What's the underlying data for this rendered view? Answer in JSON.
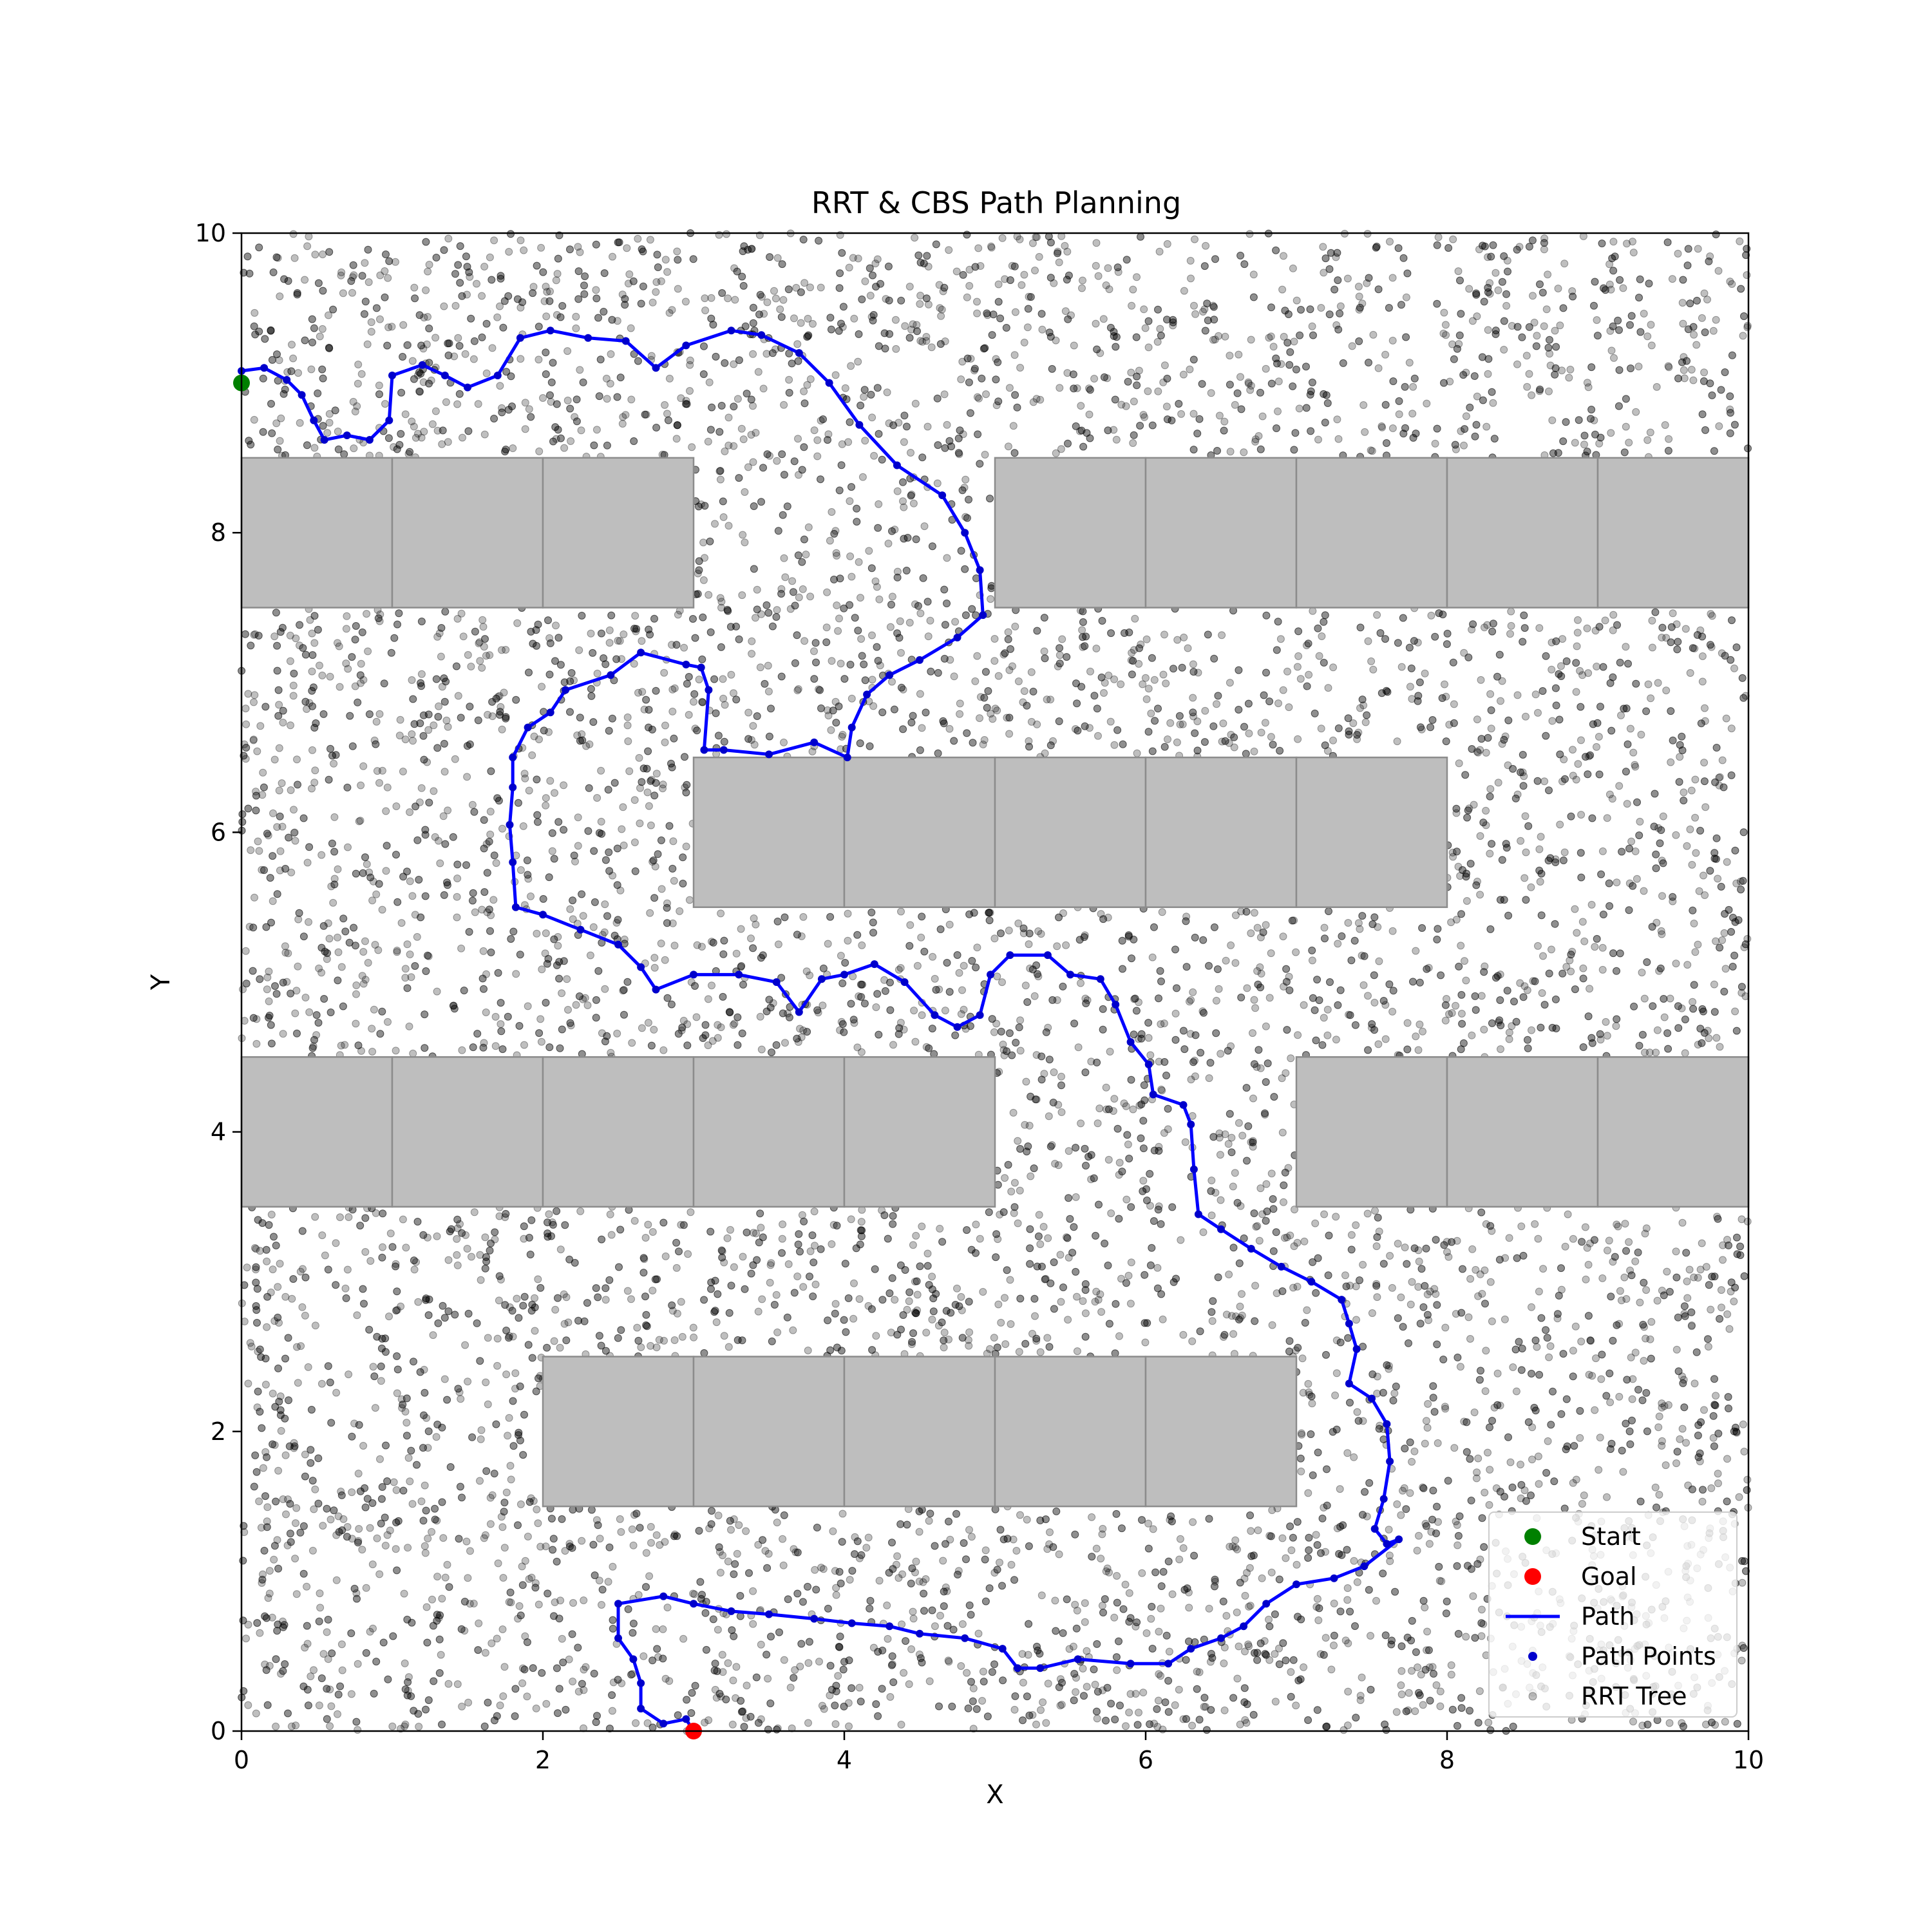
{
  "chart_data": {
    "type": "scatter",
    "title": "RRT & CBS Path Planning",
    "xlabel": "X",
    "ylabel": "Y",
    "xlim": [
      0,
      10
    ],
    "ylim": [
      0,
      10
    ],
    "xticks": [
      0,
      2,
      4,
      6,
      8,
      10
    ],
    "yticks": [
      0,
      2,
      4,
      6,
      8,
      10
    ],
    "grid": false,
    "legend_position": "bottom-right",
    "colors": {
      "start": "#008000",
      "goal": "#ff0000",
      "path": "#0000ff",
      "path_points": "#0000cc",
      "tree": "#000000",
      "obstacle_fill": "#bebebe",
      "obstacle_edge": "#8c8c8c"
    },
    "legend": [
      {
        "label": "Start",
        "kind": "marker-large",
        "color": "#008000"
      },
      {
        "label": "Goal",
        "kind": "marker-large",
        "color": "#ff0000"
      },
      {
        "label": "Path",
        "kind": "line",
        "color": "#0000ff"
      },
      {
        "label": "Path Points",
        "kind": "marker-small",
        "color": "#0000cc"
      },
      {
        "label": "RRT Tree",
        "kind": "marker-faint",
        "color": "#000000"
      }
    ],
    "start": {
      "x": 0.0,
      "y": 9.0
    },
    "goal": {
      "x": 3.0,
      "y": 0.0
    },
    "obstacles": [
      {
        "x0": 0,
        "x1": 3,
        "y0": 7.5,
        "y1": 8.5,
        "cells": 3
      },
      {
        "x0": 5,
        "x1": 10,
        "y0": 7.5,
        "y1": 8.5,
        "cells": 5
      },
      {
        "x0": 3,
        "x1": 8,
        "y0": 5.5,
        "y1": 6.5,
        "cells": 5
      },
      {
        "x0": 0,
        "x1": 5,
        "y0": 3.5,
        "y1": 4.5,
        "cells": 5
      },
      {
        "x0": 7,
        "x1": 10,
        "y0": 3.5,
        "y1": 4.5,
        "cells": 3
      },
      {
        "x0": 2,
        "x1": 7,
        "y0": 1.5,
        "y1": 2.5,
        "cells": 5
      }
    ],
    "rrt_tree": {
      "approx_sample_count": 9000,
      "style": "semi-transparent gray circles covering free space"
    },
    "path": [
      [
        0.0,
        9.08
      ],
      [
        0.15,
        9.1
      ],
      [
        0.3,
        9.02
      ],
      [
        0.4,
        8.92
      ],
      [
        0.48,
        8.75
      ],
      [
        0.55,
        8.62
      ],
      [
        0.7,
        8.65
      ],
      [
        0.85,
        8.62
      ],
      [
        0.98,
        8.75
      ],
      [
        1.0,
        9.05
      ],
      [
        1.2,
        9.12
      ],
      [
        1.35,
        9.05
      ],
      [
        1.5,
        8.97
      ],
      [
        1.7,
        9.05
      ],
      [
        1.85,
        9.3
      ],
      [
        2.05,
        9.35
      ],
      [
        2.3,
        9.3
      ],
      [
        2.55,
        9.28
      ],
      [
        2.75,
        9.1
      ],
      [
        2.95,
        9.25
      ],
      [
        3.25,
        9.35
      ],
      [
        3.45,
        9.32
      ],
      [
        3.7,
        9.2
      ],
      [
        3.9,
        9.0
      ],
      [
        4.1,
        8.72
      ],
      [
        4.35,
        8.45
      ],
      [
        4.65,
        8.25
      ],
      [
        4.8,
        8.0
      ],
      [
        4.9,
        7.75
      ],
      [
        4.92,
        7.45
      ],
      [
        4.75,
        7.3
      ],
      [
        4.5,
        7.15
      ],
      [
        4.3,
        7.05
      ],
      [
        4.15,
        6.92
      ],
      [
        4.05,
        6.7
      ],
      [
        4.02,
        6.5
      ],
      [
        3.8,
        6.6
      ],
      [
        3.5,
        6.52
      ],
      [
        3.2,
        6.55
      ],
      [
        3.07,
        6.55
      ],
      [
        3.1,
        6.95
      ],
      [
        3.05,
        7.1
      ],
      [
        2.95,
        7.12
      ],
      [
        2.65,
        7.2
      ],
      [
        2.45,
        7.05
      ],
      [
        2.15,
        6.95
      ],
      [
        2.05,
        6.8
      ],
      [
        1.9,
        6.7
      ],
      [
        1.8,
        6.5
      ],
      [
        1.8,
        6.3
      ],
      [
        1.78,
        6.05
      ],
      [
        1.8,
        5.8
      ],
      [
        1.82,
        5.5
      ],
      [
        2.0,
        5.45
      ],
      [
        2.25,
        5.35
      ],
      [
        2.5,
        5.25
      ],
      [
        2.65,
        5.1
      ],
      [
        2.75,
        4.95
      ],
      [
        3.0,
        5.05
      ],
      [
        3.3,
        5.05
      ],
      [
        3.55,
        5.0
      ],
      [
        3.7,
        4.8
      ],
      [
        3.85,
        5.02
      ],
      [
        4.0,
        5.05
      ],
      [
        4.2,
        5.12
      ],
      [
        4.4,
        5.0
      ],
      [
        4.6,
        4.78
      ],
      [
        4.75,
        4.7
      ],
      [
        4.9,
        4.78
      ],
      [
        4.97,
        5.05
      ],
      [
        5.1,
        5.18
      ],
      [
        5.35,
        5.18
      ],
      [
        5.5,
        5.05
      ],
      [
        5.7,
        5.02
      ],
      [
        5.8,
        4.85
      ],
      [
        5.9,
        4.6
      ],
      [
        6.02,
        4.45
      ],
      [
        6.05,
        4.25
      ],
      [
        6.25,
        4.18
      ],
      [
        6.3,
        4.05
      ],
      [
        6.32,
        3.75
      ],
      [
        6.35,
        3.45
      ],
      [
        6.5,
        3.35
      ],
      [
        6.7,
        3.22
      ],
      [
        6.9,
        3.1
      ],
      [
        7.1,
        3.0
      ],
      [
        7.3,
        2.88
      ],
      [
        7.35,
        2.72
      ],
      [
        7.4,
        2.55
      ],
      [
        7.35,
        2.32
      ],
      [
        7.5,
        2.22
      ],
      [
        7.6,
        2.05
      ],
      [
        7.62,
        1.8
      ],
      [
        7.58,
        1.55
      ],
      [
        7.52,
        1.35
      ],
      [
        7.6,
        1.25
      ],
      [
        7.68,
        1.28
      ],
      [
        7.45,
        1.1
      ],
      [
        7.25,
        1.02
      ],
      [
        7.0,
        0.98
      ],
      [
        6.8,
        0.85
      ],
      [
        6.65,
        0.7
      ],
      [
        6.5,
        0.62
      ],
      [
        6.3,
        0.55
      ],
      [
        6.15,
        0.45
      ],
      [
        5.9,
        0.45
      ],
      [
        5.55,
        0.48
      ],
      [
        5.3,
        0.42
      ],
      [
        5.15,
        0.42
      ],
      [
        5.05,
        0.55
      ],
      [
        4.8,
        0.62
      ],
      [
        4.5,
        0.65
      ],
      [
        4.3,
        0.7
      ],
      [
        4.05,
        0.72
      ],
      [
        3.8,
        0.75
      ],
      [
        3.5,
        0.78
      ],
      [
        3.25,
        0.8
      ],
      [
        3.0,
        0.85
      ],
      [
        2.8,
        0.9
      ],
      [
        2.5,
        0.85
      ],
      [
        2.5,
        0.62
      ],
      [
        2.6,
        0.48
      ],
      [
        2.65,
        0.32
      ],
      [
        2.65,
        0.15
      ],
      [
        2.8,
        0.05
      ],
      [
        2.95,
        0.08
      ],
      [
        3.0,
        0.0
      ]
    ]
  }
}
